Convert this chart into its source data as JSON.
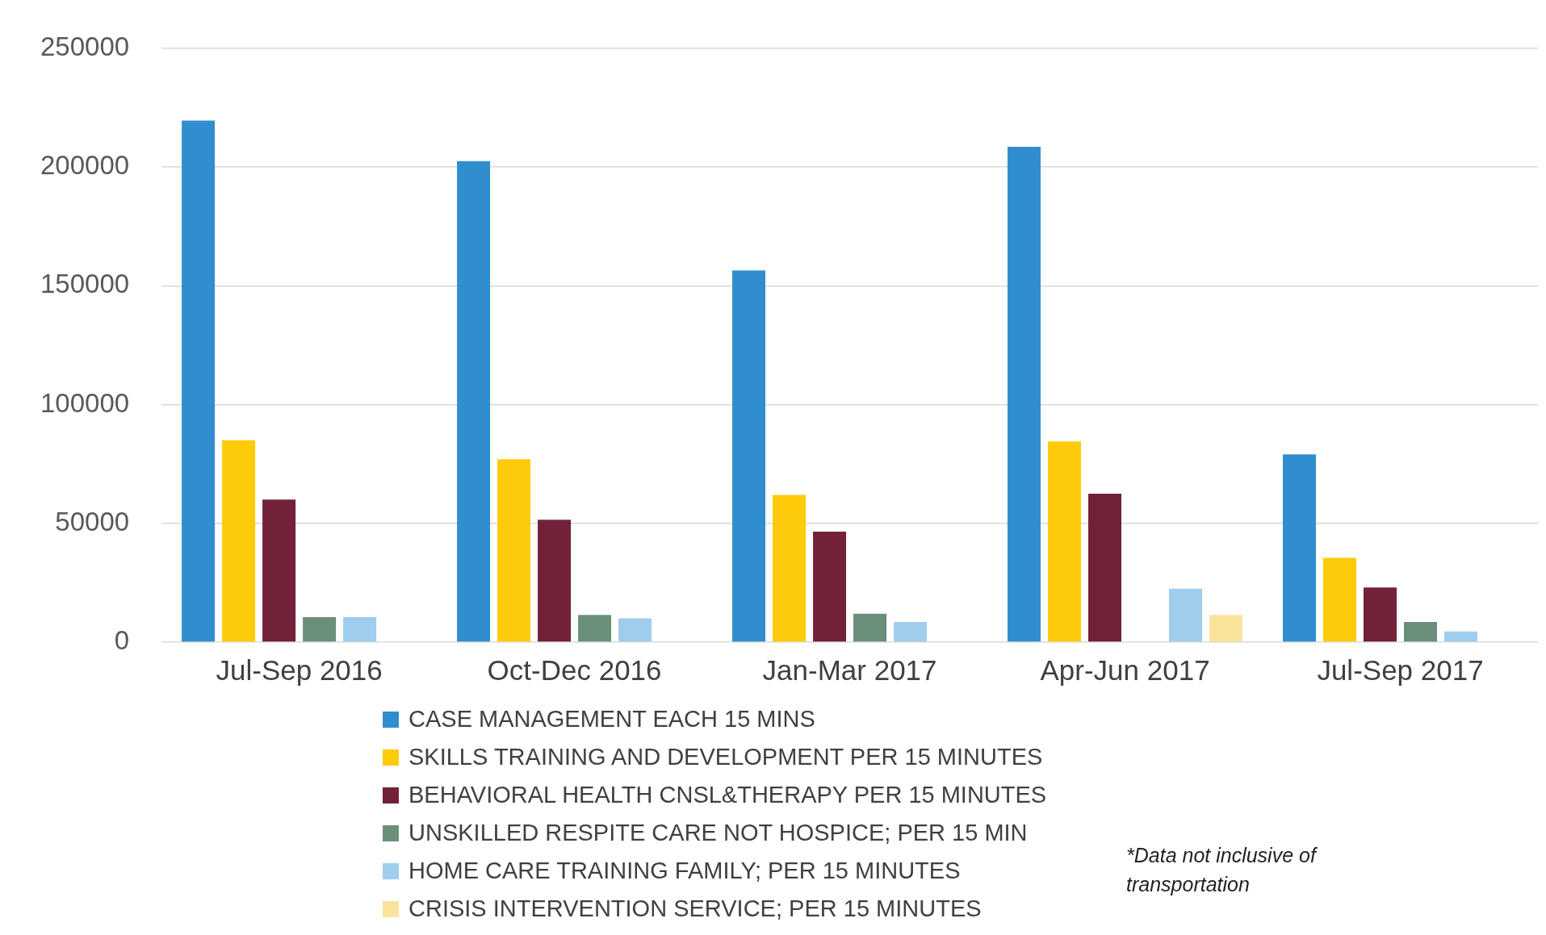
{
  "chart_data": {
    "type": "bar",
    "categories": [
      "Jul-Sep 2016",
      "Oct-Dec 2016",
      "Jan-Mar 2017",
      "Apr-Jun 2017",
      "Jul-Sep 2017"
    ],
    "series": [
      {
        "name": "CASE MANAGEMENT EACH 15 MINS",
        "color": "#318ece",
        "values": [
          219500,
          202500,
          156500,
          208500,
          79000
        ]
      },
      {
        "name": "SKILLS TRAINING AND DEVELOPMENT PER 15 MINUTES",
        "color": "#fecb0a",
        "values": [
          85000,
          77000,
          62000,
          84500,
          35500
        ]
      },
      {
        "name": "BEHAVIORAL HEALTH CNSL&THERAPY PER 15 MINUTES",
        "color": "#722138",
        "values": [
          60000,
          51500,
          46500,
          62500,
          23000
        ]
      },
      {
        "name": "UNSKILLED RESPITE CARE NOT HOSPICE; PER 15 MIN",
        "color": "#6a8f7a",
        "values": [
          10500,
          11500,
          12000,
          null,
          8500
        ]
      },
      {
        "name": "HOME CARE TRAINING FAMILY; PER 15 MINUTES",
        "color": "#9fcdee",
        "values": [
          10500,
          10000,
          8500,
          22500,
          4500
        ]
      },
      {
        "name": "CRISIS INTERVENTION SERVICE; PER 15 MINUTES",
        "color": "#fae39b",
        "values": [
          null,
          null,
          null,
          11500,
          null
        ]
      }
    ],
    "ylim": [
      0,
      250000
    ],
    "yticks": [
      0,
      50000,
      100000,
      150000,
      200000,
      250000
    ],
    "grid": "y",
    "legend": "bottom",
    "annotations": [
      "*Data not inclusive of transportation"
    ]
  }
}
